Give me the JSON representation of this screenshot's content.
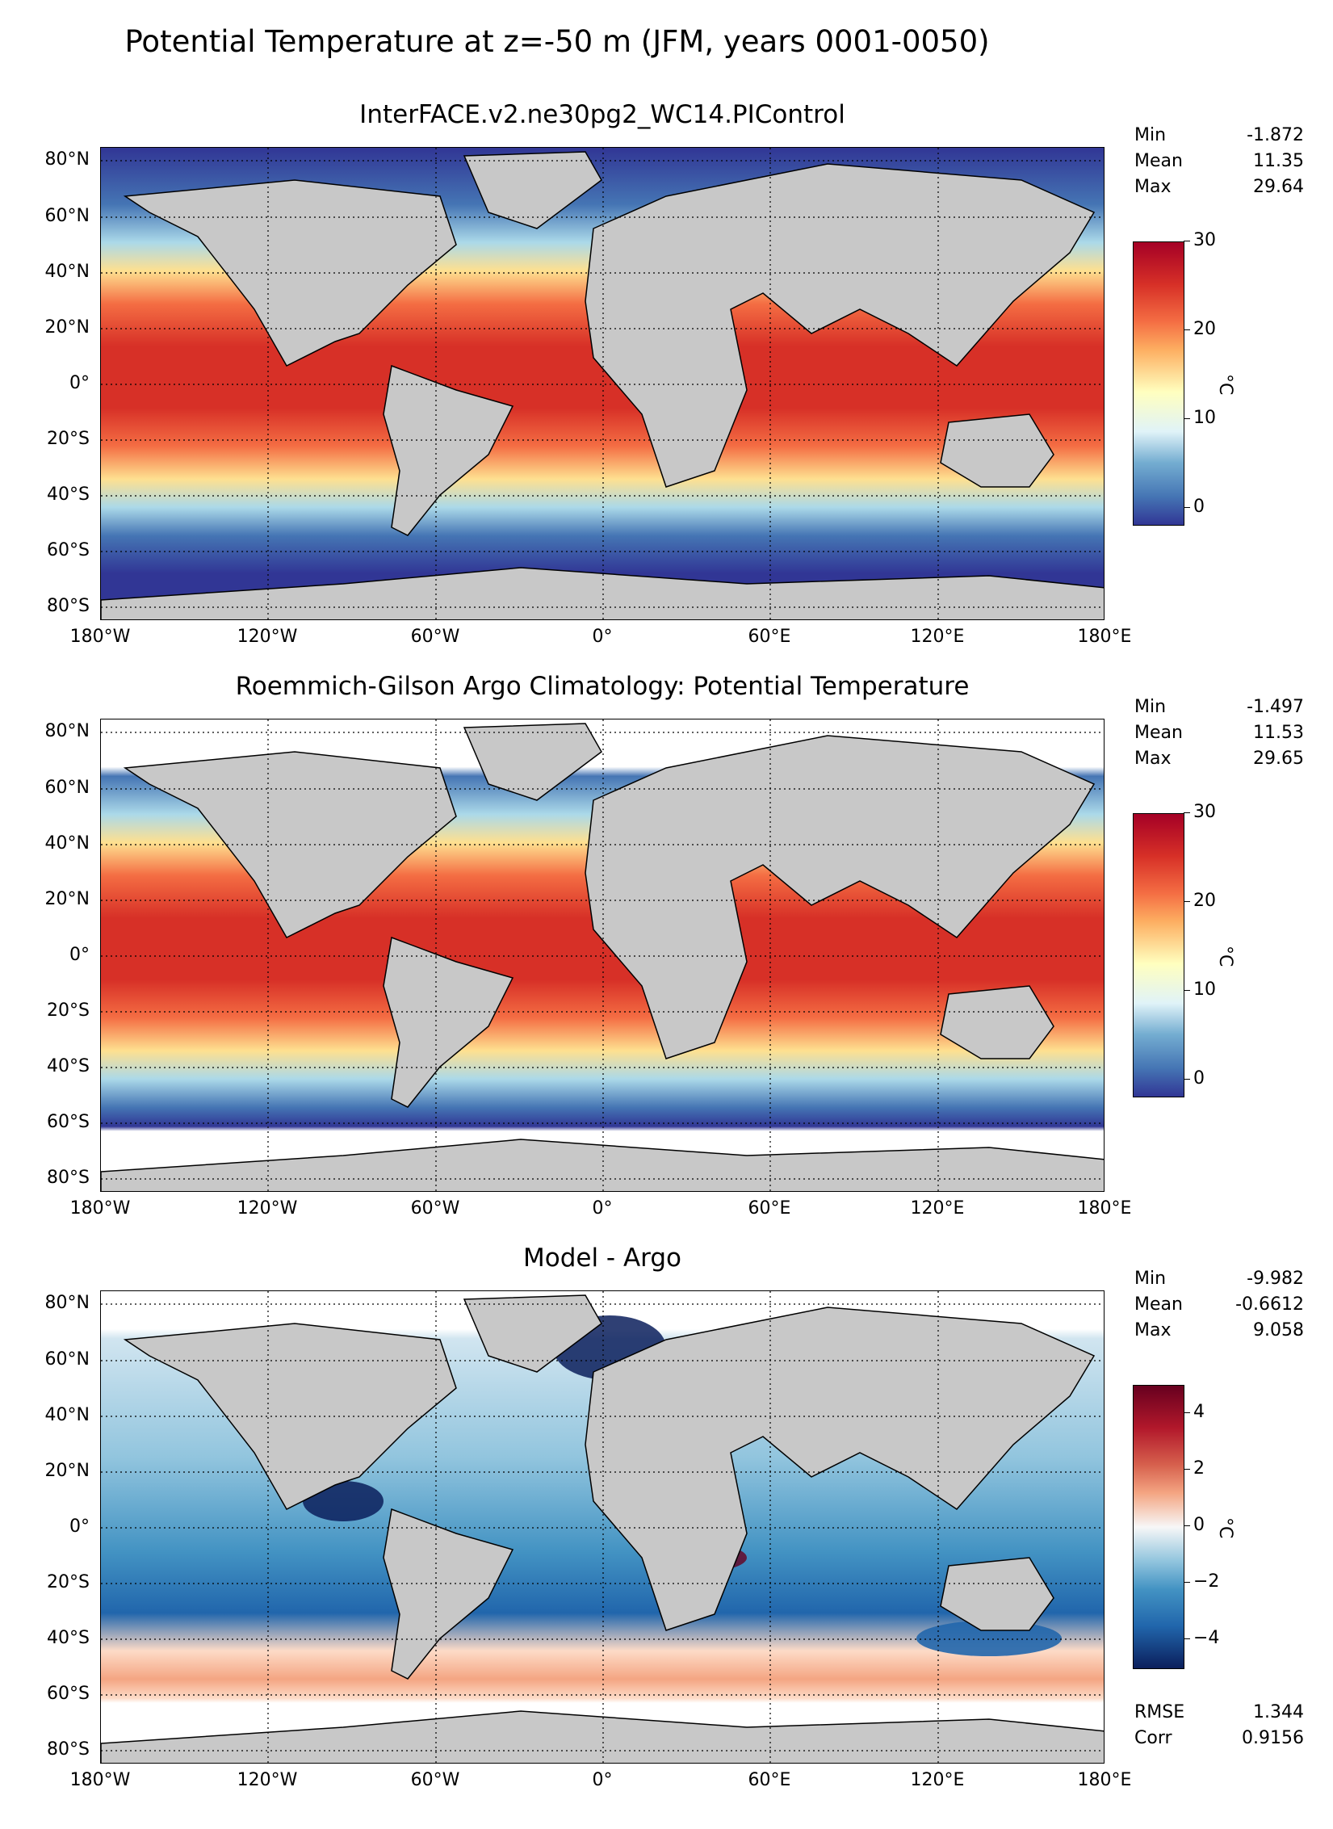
{
  "figure": {
    "suptitle": "Potential Temperature at z=-50 m (JFM, years 0001-0050)"
  },
  "axes": {
    "lat_labels": [
      "80°N",
      "60°N",
      "40°N",
      "20°N",
      "0°",
      "20°S",
      "40°S",
      "60°S",
      "80°S"
    ],
    "lon_labels": [
      "180°W",
      "120°W",
      "60°W",
      "0°",
      "60°E",
      "120°E",
      "180°E"
    ]
  },
  "panels": [
    {
      "title": "InterFACE.v2.ne30pg2_WC14.PIControl",
      "stats": [
        {
          "label": "Min",
          "value": "-1.872"
        },
        {
          "label": "Mean",
          "value": "11.35"
        },
        {
          "label": "Max",
          "value": "29.64"
        }
      ],
      "colorbar": {
        "label": "°C",
        "ticks": [
          "30",
          "20",
          "10",
          "0"
        ],
        "range": [
          -2,
          30
        ]
      },
      "extra_stats": []
    },
    {
      "title": "Roemmich-Gilson Argo Climatology: Potential Temperature",
      "stats": [
        {
          "label": "Min",
          "value": "-1.497"
        },
        {
          "label": "Mean",
          "value": "11.53"
        },
        {
          "label": "Max",
          "value": "29.65"
        }
      ],
      "colorbar": {
        "label": "°C",
        "ticks": [
          "30",
          "20",
          "10",
          "0"
        ],
        "range": [
          -2,
          30
        ]
      },
      "extra_stats": []
    },
    {
      "title": "Model - Argo",
      "stats": [
        {
          "label": "Min",
          "value": "-9.982"
        },
        {
          "label": "Mean",
          "value": "-0.6612"
        },
        {
          "label": "Max",
          "value": "9.058"
        }
      ],
      "colorbar": {
        "label": "°C",
        "ticks": [
          "4",
          "2",
          "0",
          "−2",
          "−4"
        ],
        "range": [
          -5,
          5
        ]
      },
      "extra_stats": [
        {
          "label": "RMSE",
          "value": "1.344"
        },
        {
          "label": "Corr",
          "value": "0.9156"
        }
      ]
    }
  ],
  "colors": {
    "land": "#c8c8c8",
    "sequential": [
      "#313695",
      "#4575b4",
      "#74add1",
      "#abd9e9",
      "#e0f3f8",
      "#ffffbf",
      "#fee090",
      "#fdae61",
      "#f46d43",
      "#d73027",
      "#a50026"
    ],
    "diverging": [
      "#0b1f5c",
      "#2166ac",
      "#4393c3",
      "#92c5de",
      "#d1e5f0",
      "#f7f7f7",
      "#fddbc7",
      "#f4a582",
      "#d6604d",
      "#b2182b",
      "#67001f"
    ]
  }
}
